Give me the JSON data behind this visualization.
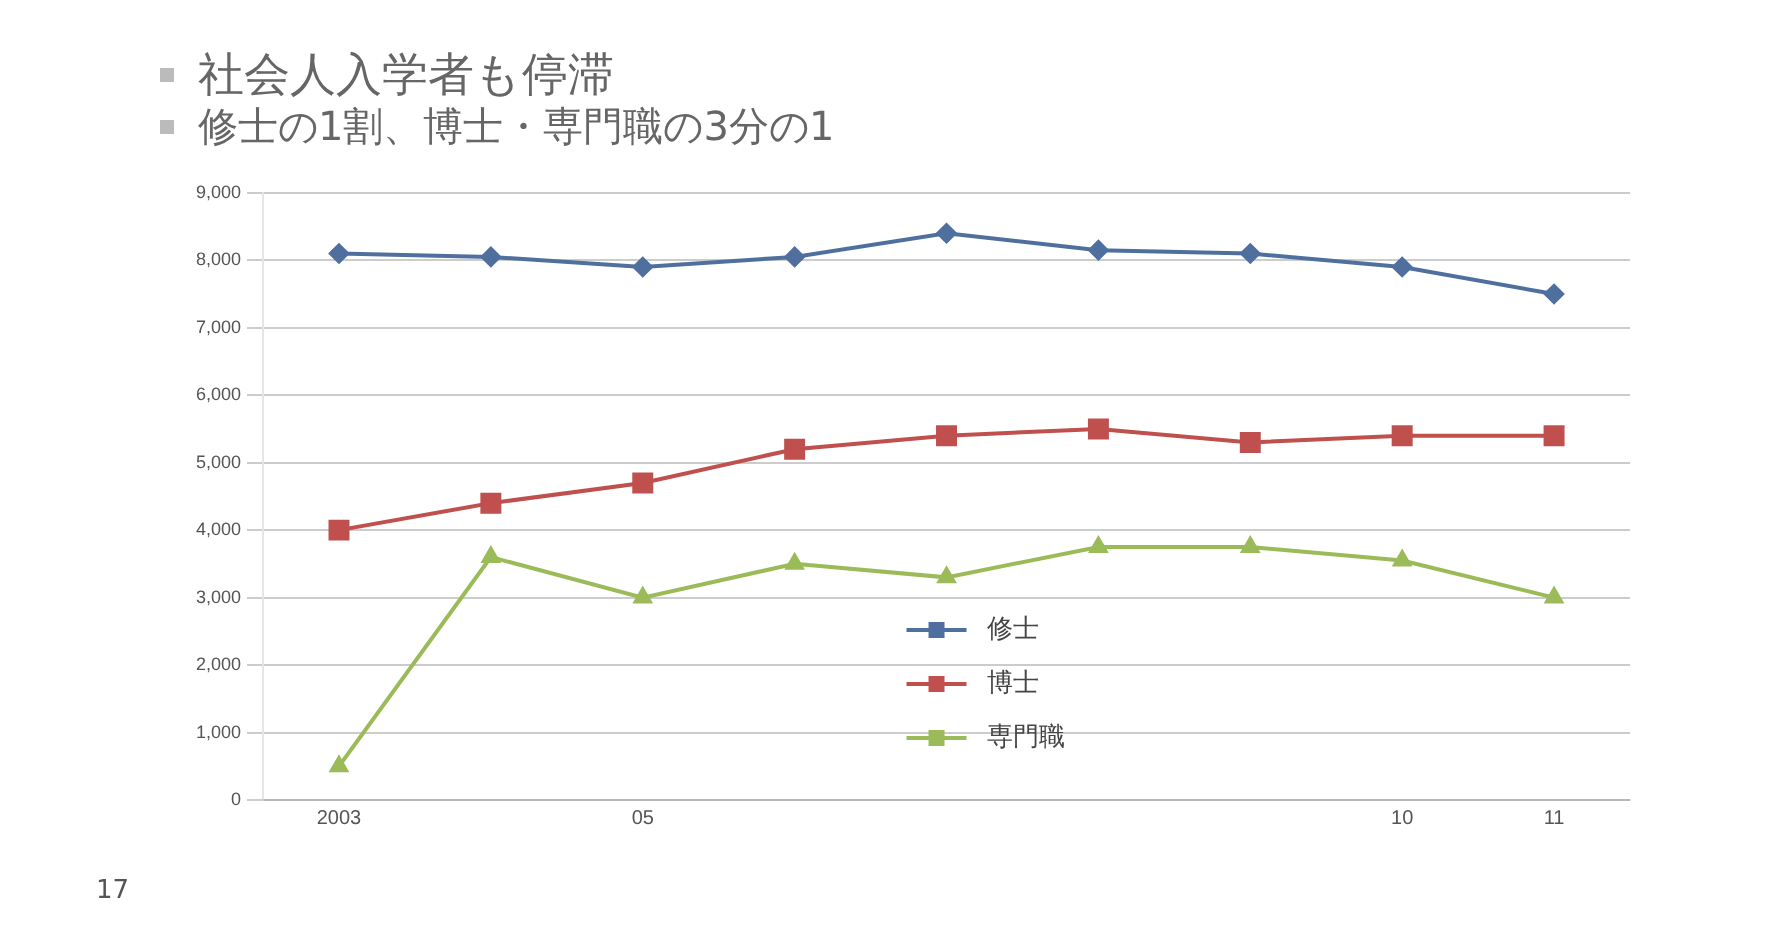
{
  "chart_data": {
    "type": "line",
    "title": "社会人入学者も停滞",
    "subtitle": "修士の1割、博士・専門職の3分の1",
    "categories": [
      "2003",
      null,
      "05",
      null,
      null,
      null,
      null,
      "10",
      "11"
    ],
    "series": [
      {
        "name": "修士",
        "color": "#4f6f9f",
        "marker": "diamond",
        "values": [
          8100,
          8050,
          7900,
          8050,
          8400,
          8150,
          8100,
          7900,
          7500
        ]
      },
      {
        "name": "博士",
        "color": "#c0504d",
        "marker": "square",
        "values": [
          4000,
          4400,
          4700,
          5200,
          5400,
          5500,
          5300,
          5400,
          5400
        ]
      },
      {
        "name": "専門職",
        "color": "#9bbb59",
        "marker": "triangle",
        "values": [
          500,
          3600,
          3000,
          3500,
          3300,
          3750,
          3750,
          3550,
          3000
        ]
      }
    ],
    "ylim": [
      0,
      9000
    ],
    "yticks": [
      {
        "value": 0,
        "label": "0"
      },
      {
        "value": 1000,
        "label": "1,000"
      },
      {
        "value": 2000,
        "label": "2,000"
      },
      {
        "value": 3000,
        "label": "3,000"
      },
      {
        "value": 4000,
        "label": "4,000"
      },
      {
        "value": 5000,
        "label": "5,000"
      },
      {
        "value": 6000,
        "label": "6,000"
      },
      {
        "value": 7000,
        "label": "7,000"
      },
      {
        "value": 8000,
        "label": "8,000"
      },
      {
        "value": 9000,
        "label": "9,000"
      }
    ],
    "grid": "y",
    "legend": "bottom",
    "annotations": [
      "17"
    ]
  }
}
